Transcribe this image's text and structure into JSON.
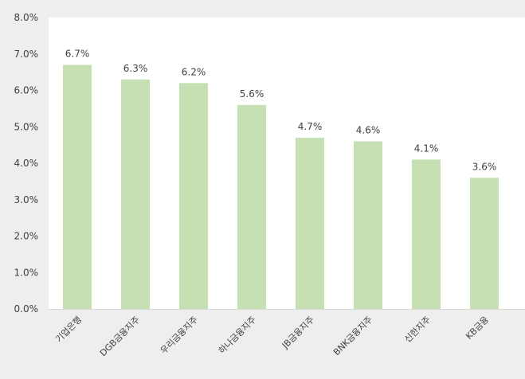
{
  "chart_data": {
    "type": "bar",
    "title": "",
    "xlabel": "",
    "ylabel": "",
    "categories": [
      "기업은행",
      "DGB금융지주",
      "우리금융지주",
      "하나금융지주",
      "JB금융지주",
      "BNK금융지주",
      "신한지주",
      "KB금융"
    ],
    "values": [
      6.7,
      6.3,
      6.2,
      5.6,
      4.7,
      4.6,
      4.1,
      3.6
    ],
    "value_labels": [
      "6.7%",
      "6.3%",
      "6.2%",
      "5.6%",
      "4.7%",
      "4.6%",
      "4.1%",
      "3.6%"
    ],
    "ylim": [
      0,
      8
    ],
    "yticks": [
      0,
      1,
      2,
      3,
      4,
      5,
      6,
      7,
      8
    ],
    "ytick_labels": [
      "0.0%",
      "1.0%",
      "2.0%",
      "3.0%",
      "4.0%",
      "5.0%",
      "6.0%",
      "7.0%",
      "8.0%"
    ],
    "grid": false,
    "legend": "none",
    "colors": {
      "bar": "#c6e0b4",
      "axis": "#d9d9d9",
      "plot_bg": "#ffffff",
      "page_bg": "#eeeeee",
      "text": "#404040"
    }
  }
}
